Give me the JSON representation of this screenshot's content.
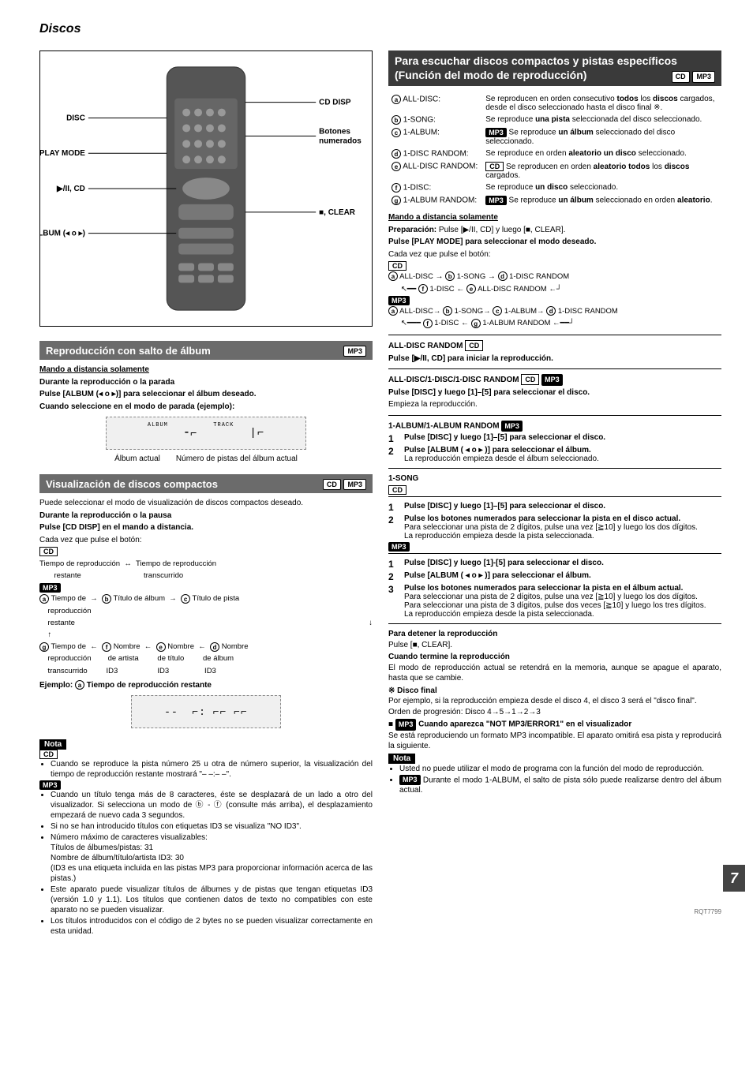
{
  "page_title": "Discos",
  "page_number": "7",
  "footer_code": "RQT7799",
  "remote_diagram": {
    "labels_left": [
      "DISC",
      "PLAY MODE",
      "▶/II, CD",
      "ALBUM (◂ o ▸)"
    ],
    "labels_right": [
      "CD DISP",
      "Botones numerados",
      "■, CLEAR"
    ]
  },
  "section_album_skip": {
    "title": "Reproducción con salto de álbum",
    "badge": "MP3",
    "subtitle": "Mando a distancia solamente",
    "line1": "Durante la reproducción o la parada",
    "line2": "Pulse [ALBUM (◂ o ▸)] para seleccionar el álbum deseado.",
    "line3": "Cuando seleccione en el modo de parada (ejemplo):",
    "caption_left": "Álbum actual",
    "caption_right": "Número de pistas del álbum actual",
    "display_segments": [
      "ALBUM  ⁃⌐",
      "TRACK  |⌐"
    ]
  },
  "section_cd_display": {
    "title": "Visualización de discos compactos",
    "badges": [
      "CD",
      "MP3"
    ],
    "intro": "Puede seleccionar el modo de visualización de discos compactos deseado.",
    "line1": "Durante la reproducción o la pausa",
    "line2": "Pulse [CD DISP] en el mando a distancia.",
    "line3": "Cada vez que pulse el botón:",
    "cd_badge": "CD",
    "cd_flow": "Tiempo de reproducción restante ↔ Tiempo de reproducción transcurrido",
    "mp3_badge": "MP3",
    "mp3_row1": {
      "a": "Tiempo de reproducción restante",
      "b": "Título de álbum",
      "c": "Título de pista"
    },
    "mp3_row2": {
      "g": "Tiempo de reproducción transcurrido",
      "f": "Nombre de artista ID3",
      "e": "Nombre de título ID3",
      "d": "Nombre de álbum ID3"
    },
    "example_label": "Ejemplo: ⓐ Tiempo de reproducción restante",
    "display_text": "-- ⌐: ⌐⌐",
    "nota_label": "Nota",
    "nota_cd_badge": "CD",
    "nota_cd_bullet": "Cuando se reproduce la pista número 25 u otra de número superior, la visualización del tiempo de reproducción restante mostrará \"– –:– –\".",
    "nota_mp3_badge": "MP3",
    "nota_mp3_bullets": [
      "Cuando un título tenga más de 8 caracteres, éste se desplazará de un lado a otro del visualizador. Si selecciona un modo de ⓑ - ⓕ (consulte más arriba), el desplazamiento empezará de nuevo cada 3 segundos.",
      "Si no se han introducido títulos con etiquetas ID3 se visualiza \"NO ID3\".",
      "Número máximo de caracteres visualizables:\nTítulos de álbumes/pistas: 31\nNombre de álbum/título/artista ID3: 30\n(ID3 es una etiqueta incluida en las pistas MP3 para proporcionar información acerca de las pistas.)",
      "Este aparato puede visualizar títulos de álbumes y de pistas que tengan etiquetas ID3 (versión 1.0 y 1.1). Los títulos que contienen datos de texto no compatibles con este aparato no se pueden visualizar.",
      "Los títulos introducidos con el código de 2 bytes no se pueden visualizar correctamente en esta unidad."
    ]
  },
  "section_playmode": {
    "title": "Para escuchar discos compactos y pistas específicos (Función del modo de reproducción)",
    "badges": [
      "CD",
      "MP3"
    ],
    "modes": [
      {
        "k": "a",
        "label": "ALL-DISC:",
        "text": "Se reproducen en orden consecutivo <b>todos</b> los <b>discos</b> cargados, desde el disco seleccionado hasta el disco final ※."
      },
      {
        "k": "b",
        "label": "1-SONG:",
        "text": "Se reproduce <b>una pista</b> seleccionada del disco seleccionado."
      },
      {
        "k": "c",
        "label": "1-ALBUM:",
        "badge": "MP3",
        "text": "Se reproduce <b>un álbum</b> seleccionado del disco seleccionado."
      },
      {
        "k": "d",
        "label": "1-DISC RANDOM:",
        "text": "Se reproduce en orden <b>aleatorio un disco</b> seleccionado."
      },
      {
        "k": "e",
        "label": "ALL-DISC RANDOM:",
        "badge": "CD",
        "text": "Se reproducen en orden <b>aleatorio todos</b> los <b>discos</b> cargados."
      },
      {
        "k": "f",
        "label": "1-DISC:",
        "text": "Se reproduce <b>un disco</b> seleccionado."
      },
      {
        "k": "g",
        "label": "1-ALBUM RANDOM:",
        "badge": "MP3",
        "text": "Se reproduce <b>un álbum</b> seleccionado en orden <b>aleatorio</b>."
      }
    ],
    "remote_only": "Mando a distancia solamente",
    "prep": "Preparación: Pulse [▶/II, CD] y luego [■, CLEAR].",
    "press_playmode": "Pulse [PLAY MODE] para seleccionar el modo deseado.",
    "each_press": "Cada vez que pulse el botón:",
    "cd_badge": "CD",
    "cd_cycle": "ⓐ ALL-DISC → ⓑ 1-SONG → ⓓ 1-DISC RANDOM\n      ↖ ⓕ 1-DISC ← ⓔ ALL-DISC RANDOM ↵",
    "mp3_badge": "MP3",
    "mp3_cycle": "ⓐ ALL-DISC → ⓑ 1-SONG → ⓒ 1-ALBUM → ⓓ 1-DISC RANDOM\n      ↖ ⓕ 1-DISC ← ⓖ 1-ALBUM RANDOM ↵",
    "all_disc_random_h": "ALL-DISC RANDOM",
    "all_disc_random_badge": "CD",
    "all_disc_random_t": "Pulse [▶/II, CD] para iniciar la reproducción.",
    "multi_random_h": "ALL-DISC/1-DISC/1-DISC RANDOM",
    "multi_random_badges": [
      "CD",
      "MP3"
    ],
    "multi_random_t1": "Pulse [DISC] y luego [1]–[5] para seleccionar el disco.",
    "multi_random_t2": "Empieza la reproducción.",
    "one_album_h": "1-ALBUM/1-ALBUM RANDOM",
    "one_album_badge": "MP3",
    "one_album_s1": "Pulse [DISC] y luego [1]–[5] para seleccionar el disco.",
    "one_album_s2": "Pulse [ALBUM ( ◂ o ▸ )] para seleccionar el álbum.",
    "one_album_s2b": "La reproducción empieza desde el álbum seleccionado.",
    "one_song_h": "1-SONG",
    "one_song_cd_badge": "CD",
    "one_song_cd_s1": "Pulse [DISC] y luego [1]–[5] para seleccionar el disco.",
    "one_song_cd_s2": "Pulse los botones numerados para seleccionar la pista en el disco actual.",
    "one_song_cd_s2b": "Para seleccionar una pista de 2 dígitos, pulse una vez [≧10] y luego los dos dígitos.",
    "one_song_cd_s2c": "La reproducción empieza desde la pista seleccionada.",
    "one_song_mp3_badge": "MP3",
    "one_song_mp3_s1": "Pulse [DISC] y luego [1]-[5] para seleccionar el disco.",
    "one_song_mp3_s2": "Pulse [ALBUM ( ◂ o ▸ )] para seleccionar el álbum.",
    "one_song_mp3_s3": "Pulse los botones numerados para seleccionar la pista en el álbum actual.",
    "one_song_mp3_s3b": "Para seleccionar una pista de 2 dígitos, pulse una vez [≧10] y luego los dos dígitos.",
    "one_song_mp3_s3c": "Para seleccionar una pista de 3 dígitos, pulse dos veces [≧10] y luego los tres dígitos.",
    "one_song_mp3_s3d": "La reproducción empieza desde la pista seleccionada.",
    "stop_h": "Para detener la reproducción",
    "stop_t": "Pulse [■, CLEAR].",
    "finish_h": "Cuando termine la reproducción",
    "finish_t": "El modo de reproducción actual se retendrá en la memoria, aunque se apague el aparato, hasta que se cambie.",
    "final_h": "※ Disco final",
    "final_t1": "Por ejemplo, si la reproducción empieza desde el disco 4, el disco 3 será el \"disco final\".",
    "final_t2": "Orden de progresión: Disco 4→5→1→2→3",
    "error_h": "Cuando aparezca \"NOT MP3/ERROR1\" en el visualizador",
    "error_badge": "MP3",
    "error_t": "Se está reproduciendo un formato MP3 incompatible. El aparato omitirá esa pista y reproducirá la siguiente.",
    "nota_label": "Nota",
    "nota_bullets": [
      "Usted no puede utilizar el modo de programa con la función del modo de reproducción.",
      "Durante el modo 1-ALBUM, el salto de pista sólo puede realizarse dentro del álbum actual."
    ],
    "nota_b2_badge": "MP3"
  }
}
